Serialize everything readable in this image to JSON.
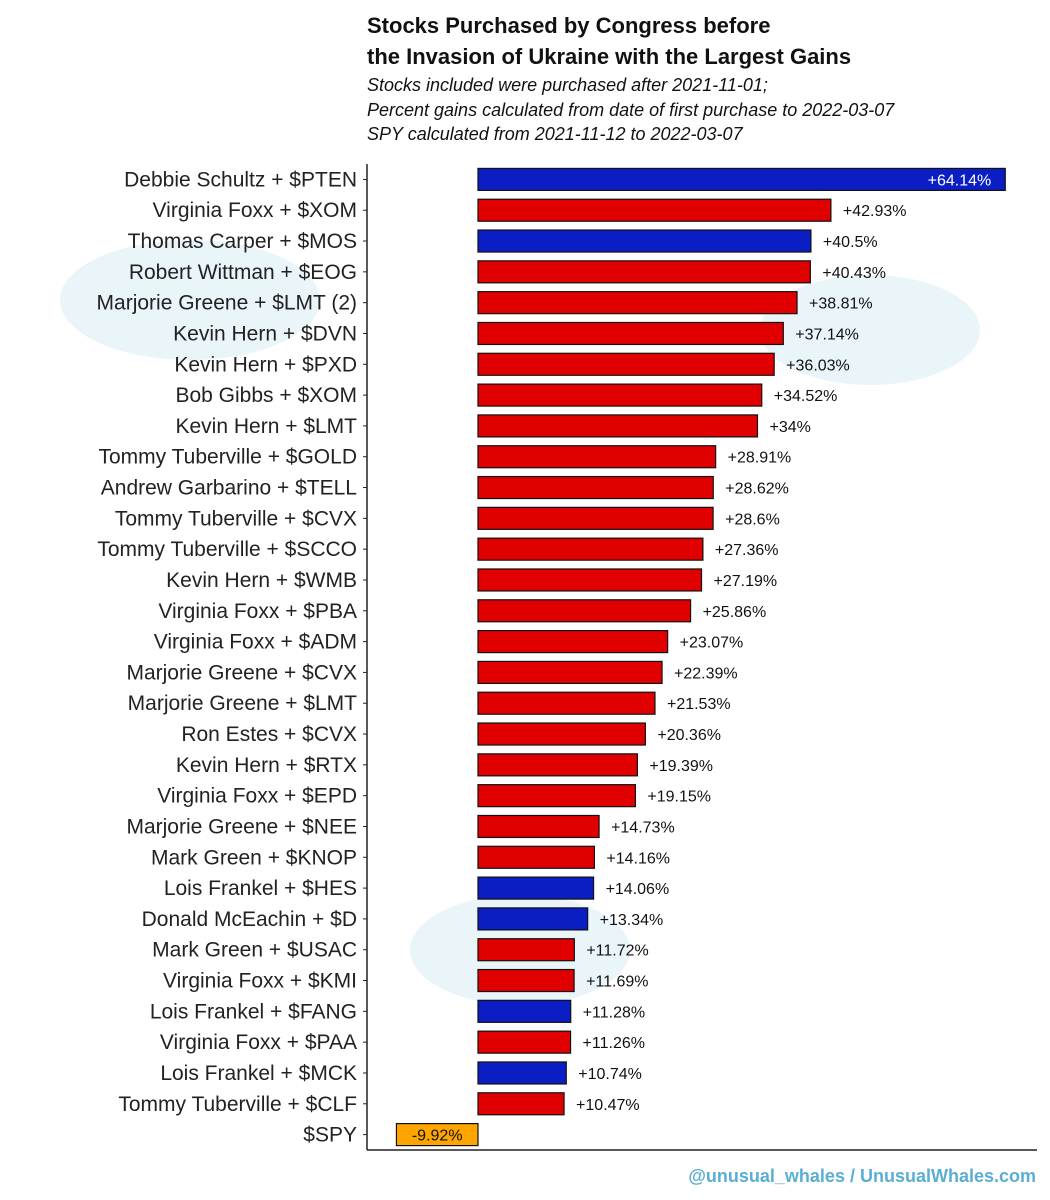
{
  "chart_data": {
    "type": "bar",
    "orientation": "horizontal",
    "title": "Stocks Purchased by Congress before the Invasion of Ukraine with the Largest Gains",
    "title_lines": [
      "Stocks Purchased by Congress before",
      "the Invasion of Ukraine with the Largest Gains"
    ],
    "subtitle_lines": [
      "Stocks included were purchased after 2021-11-01;",
      "Percent gains calculated from date of first purchase to 2022-03-07",
      "SPY calculated from 2021-11-12 to 2022-03-07"
    ],
    "xlabel": "",
    "ylabel": "",
    "xlim": [
      -13.5,
      68
    ],
    "grid": false,
    "colors": {
      "democrat": "#0a1ec4",
      "republican": "#e00000",
      "benchmark": "#ffa500"
    },
    "categories": [
      "Debbie Schultz + $PTEN",
      "Virginia Foxx + $XOM",
      "Thomas Carper + $MOS",
      "Robert Wittman + $EOG",
      "Marjorie Greene + $LMT (2)",
      "Kevin Hern + $DVN",
      "Kevin Hern + $PXD",
      "Bob Gibbs + $XOM",
      "Kevin Hern + $LMT",
      "Tommy Tuberville + $GOLD",
      "Andrew Garbarino + $TELL",
      "Tommy Tuberville + $CVX",
      "Tommy Tuberville + $SCCO",
      "Kevin Hern + $WMB",
      "Virginia Foxx + $PBA",
      "Virginia Foxx + $ADM",
      "Marjorie Greene + $CVX",
      "Marjorie Greene + $LMT",
      "Ron Estes + $CVX",
      "Kevin Hern + $RTX",
      "Virginia Foxx + $EPD",
      "Marjorie Greene + $NEE",
      "Mark Green + $KNOP",
      "Lois Frankel + $HES",
      "Donald McEachin + $D",
      "Mark Green + $USAC",
      "Virginia Foxx + $KMI",
      "Lois Frankel + $FANG",
      "Virginia Foxx + $PAA",
      "Lois Frankel + $MCK",
      "Tommy Tuberville + $CLF",
      "$SPY"
    ],
    "values": [
      64.14,
      42.93,
      40.5,
      40.43,
      38.81,
      37.14,
      36.03,
      34.52,
      34,
      28.91,
      28.62,
      28.6,
      27.36,
      27.19,
      25.86,
      23.07,
      22.39,
      21.53,
      20.36,
      19.39,
      19.15,
      14.73,
      14.16,
      14.06,
      13.34,
      11.72,
      11.69,
      11.28,
      11.26,
      10.74,
      10.47,
      -9.92
    ],
    "data_labels": [
      "+64.14%",
      "+42.93%",
      "+40.5%",
      "+40.43%",
      "+38.81%",
      "+37.14%",
      "+36.03%",
      "+34.52%",
      "+34%",
      "+28.91%",
      "+28.62%",
      "+28.6%",
      "+27.36%",
      "+27.19%",
      "+25.86%",
      "+23.07%",
      "+22.39%",
      "+21.53%",
      "+20.36%",
      "+19.39%",
      "+19.15%",
      "+14.73%",
      "+14.16%",
      "+14.06%",
      "+13.34%",
      "+11.72%",
      "+11.69%",
      "+11.28%",
      "+11.26%",
      "+10.74%",
      "+10.47%",
      "-9.92%"
    ],
    "groups": [
      "democrat",
      "republican",
      "democrat",
      "republican",
      "republican",
      "republican",
      "republican",
      "republican",
      "republican",
      "republican",
      "republican",
      "republican",
      "republican",
      "republican",
      "republican",
      "republican",
      "republican",
      "republican",
      "republican",
      "republican",
      "republican",
      "republican",
      "republican",
      "democrat",
      "democrat",
      "republican",
      "republican",
      "democrat",
      "republican",
      "democrat",
      "republican",
      "benchmark"
    ]
  },
  "credit": "@unusual_whales / UnusualWhales.com"
}
